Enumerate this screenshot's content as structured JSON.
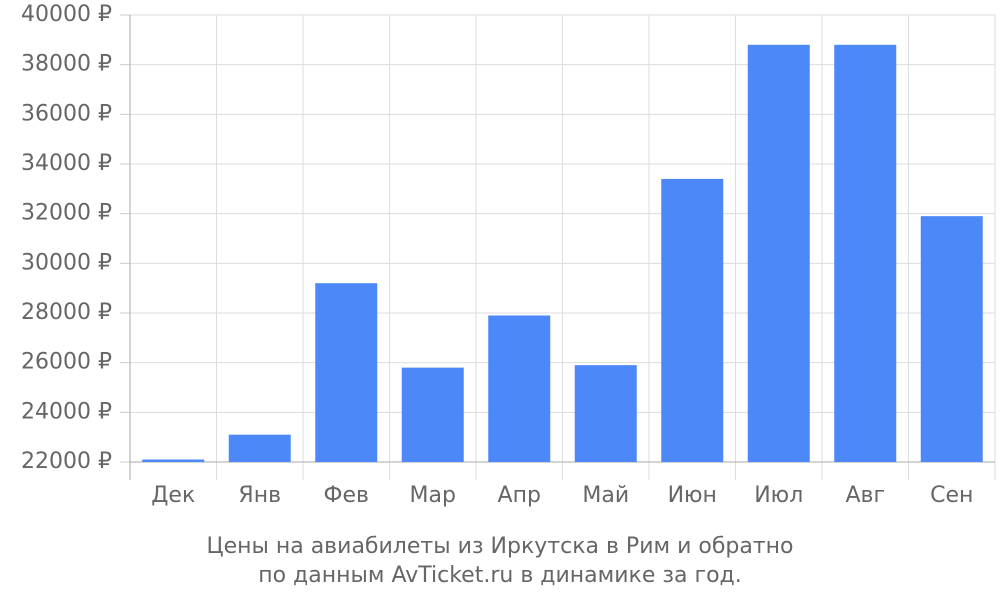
{
  "chart_data": {
    "type": "bar",
    "title": [
      "Цены на авиабилеты из Иркутска в Рим и обратно",
      "по данным AvTicket.ru в динамике за год."
    ],
    "categories": [
      "Дек",
      "Янв",
      "Фев",
      "Мар",
      "Апр",
      "Май",
      "Июн",
      "Июл",
      "Авг",
      "Сен"
    ],
    "values": [
      22100,
      23100,
      29200,
      25800,
      27900,
      25900,
      33400,
      38800,
      38800,
      31900
    ],
    "color": "#4d88f9",
    "ylim": [
      22000,
      40000
    ],
    "yticks": [
      {
        "value": 22000,
        "label": "22000 ₽"
      },
      {
        "value": 24000,
        "label": "24000 ₽"
      },
      {
        "value": 26000,
        "label": "26000 ₽"
      },
      {
        "value": 28000,
        "label": "28000 ₽"
      },
      {
        "value": 30000,
        "label": "30000 ₽"
      },
      {
        "value": 32000,
        "label": "32000 ₽"
      },
      {
        "value": 34000,
        "label": "34000 ₽"
      },
      {
        "value": 36000,
        "label": "36000 ₽"
      },
      {
        "value": 38000,
        "label": "38000 ₽"
      },
      {
        "value": 40000,
        "label": "40000 ₽"
      }
    ],
    "grid": true
  }
}
